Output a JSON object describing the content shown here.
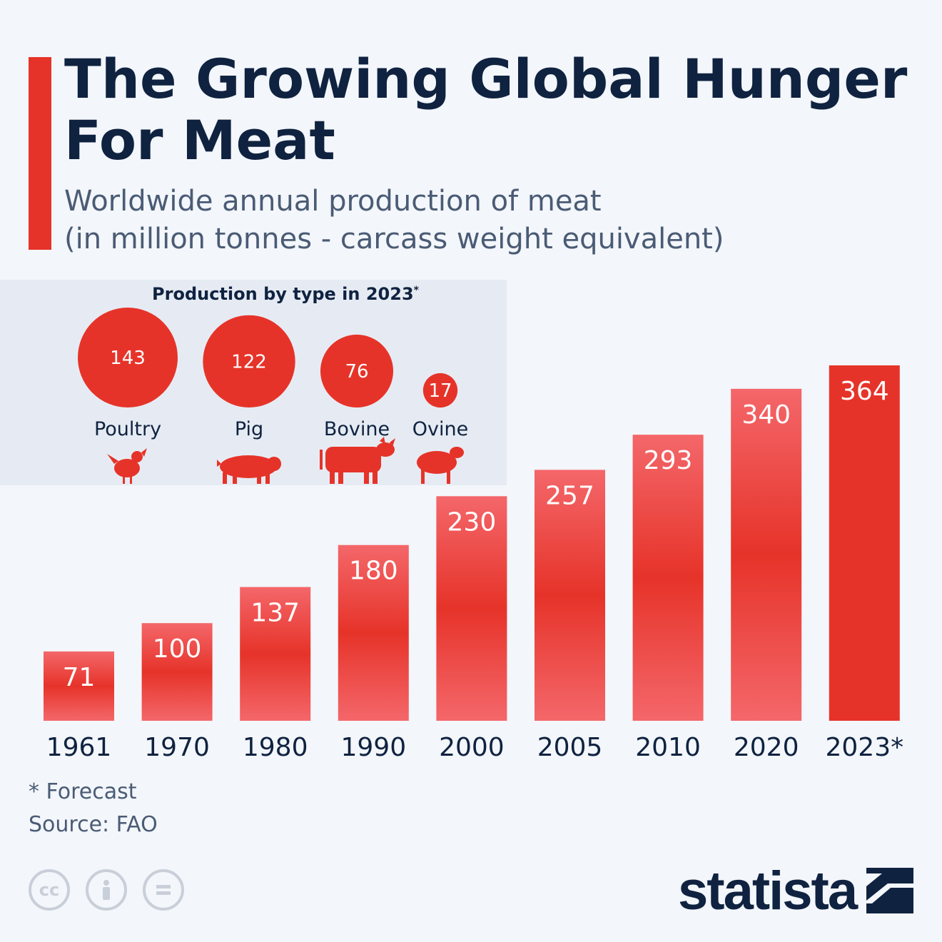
{
  "header": {
    "title": "The Growing Global Hunger For Meat",
    "subtitle_line1": "Worldwide annual production of meat",
    "subtitle_line2": "(in million tonnes - carcass weight equivalent)"
  },
  "inset": {
    "title": "Production by type in 2023",
    "title_mark": "*"
  },
  "colors": {
    "accent": "#e63329",
    "bar_light": "#f4676a",
    "bar_dark": "#e63329",
    "text_dark": "#0f2240",
    "text_muted": "#4a5b75"
  },
  "chart_data": [
    {
      "type": "bar",
      "categories": [
        "1961",
        "1970",
        "1980",
        "1990",
        "2000",
        "2005",
        "2010",
        "2020",
        "2023*"
      ],
      "values": [
        71,
        100,
        137,
        180,
        230,
        257,
        293,
        340,
        364
      ],
      "ylim": [
        0,
        364
      ],
      "grid": false,
      "highlighted_category": "2023*"
    },
    {
      "type": "bubble",
      "title": "Production by type in 2023*",
      "categories": [
        "Poultry",
        "Pig",
        "Bovine",
        "Ovine"
      ],
      "values": [
        143,
        122,
        76,
        17
      ],
      "icons": [
        "chicken-icon",
        "pig-icon",
        "cow-icon",
        "sheep-icon"
      ]
    }
  ],
  "footer": {
    "note": "* Forecast",
    "source": "Source: FAO",
    "license_icons": [
      "cc-icon",
      "attribution-icon",
      "no-derivatives-icon"
    ],
    "logo": "statista"
  }
}
